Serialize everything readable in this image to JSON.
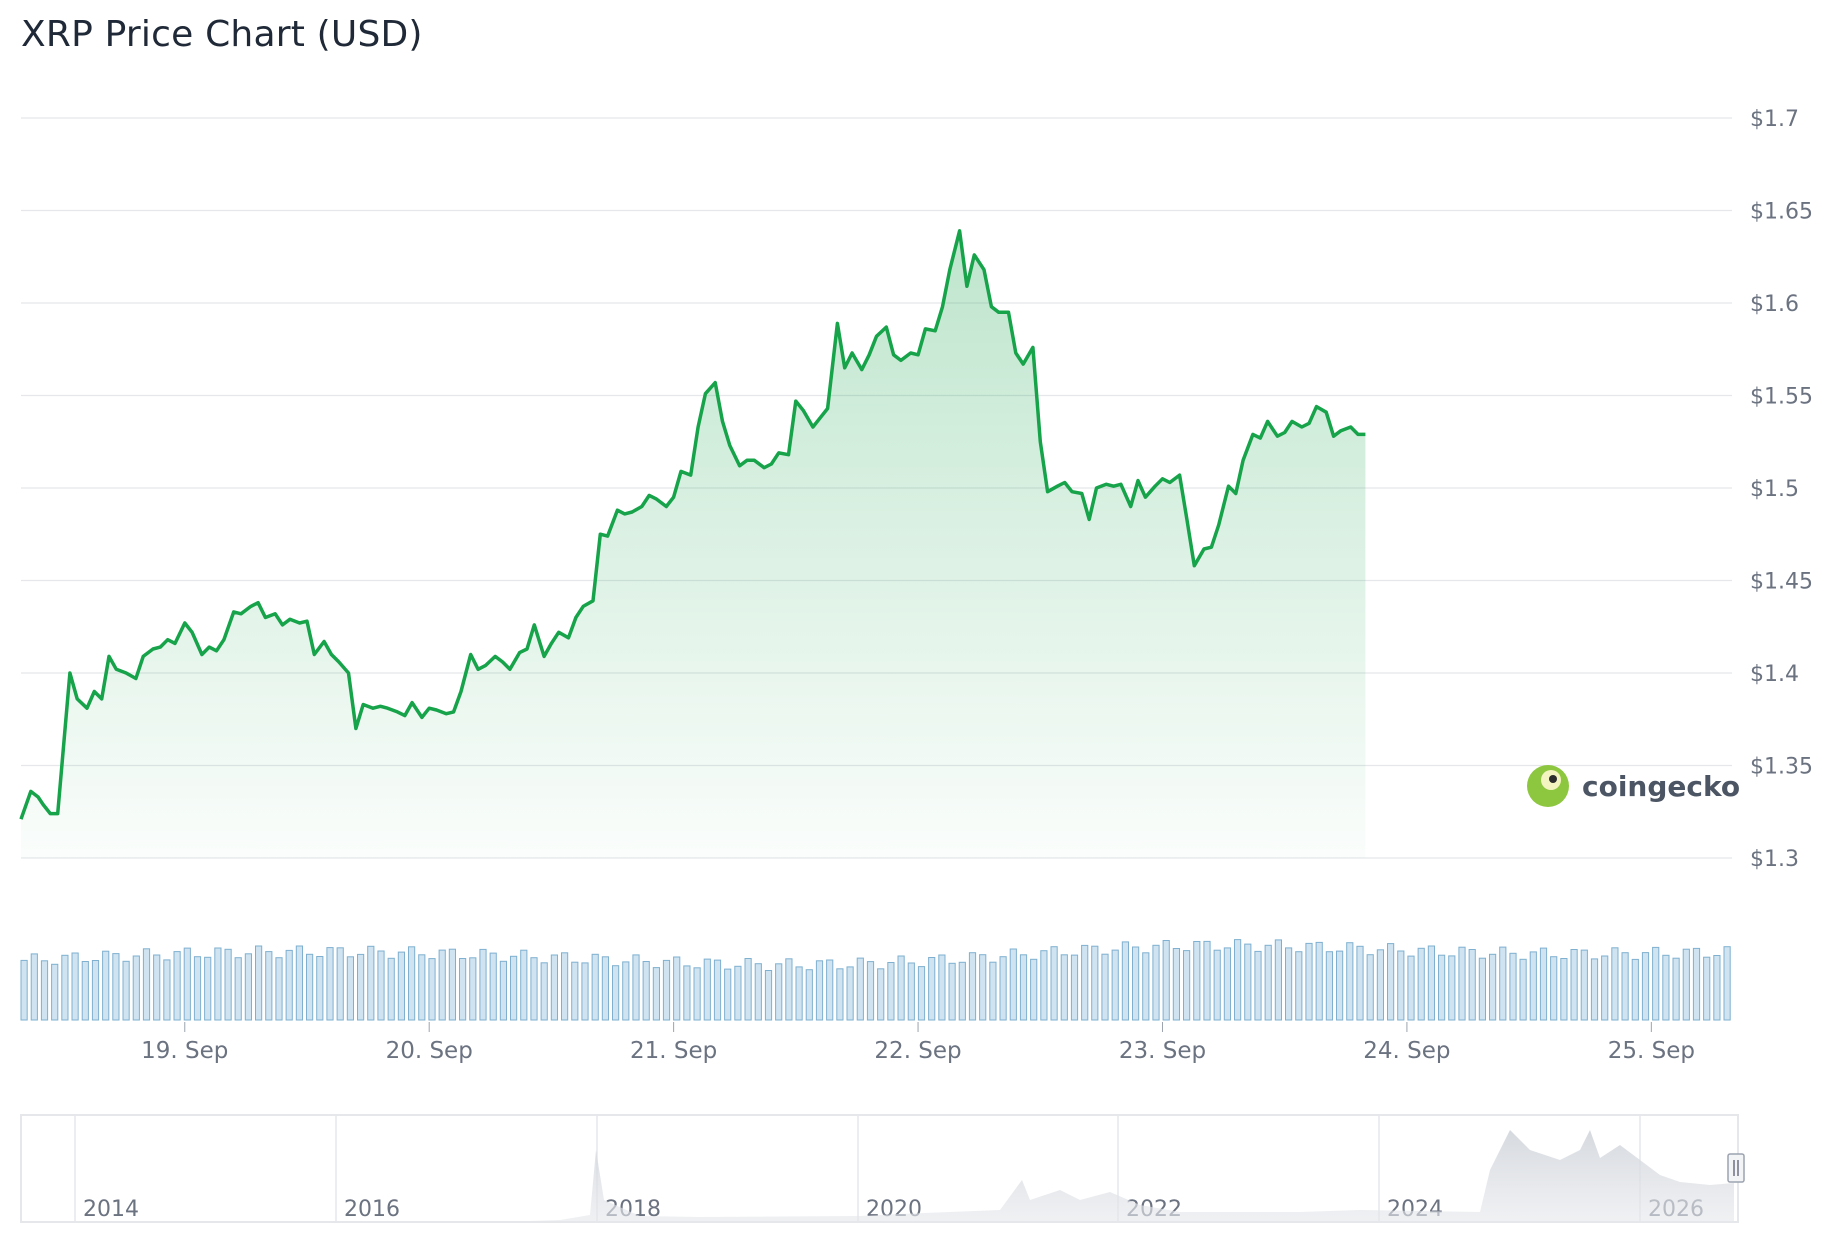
{
  "chart_data": {
    "type": "line",
    "title": "XRP Price Chart (USD)",
    "y_unit": "USD",
    "ylim": [
      1.3,
      1.7
    ],
    "y_ticks": [
      {
        "value": 1.7,
        "label": "$1.7"
      },
      {
        "value": 1.65,
        "label": "$1.65"
      },
      {
        "value": 1.6,
        "label": "$1.6"
      },
      {
        "value": 1.55,
        "label": "$1.55"
      },
      {
        "value": 1.5,
        "label": "$1.5"
      },
      {
        "value": 1.45,
        "label": "$1.45"
      },
      {
        "value": 1.4,
        "label": "$1.4"
      },
      {
        "value": 1.35,
        "label": "$1.35"
      },
      {
        "value": 1.3,
        "label": "$1.3"
      }
    ],
    "x_range_days": [
      18.33,
      25.33
    ],
    "x_ticks": [
      {
        "value": 19,
        "label": "19. Sep"
      },
      {
        "value": 20,
        "label": "20. Sep"
      },
      {
        "value": 21,
        "label": "21. Sep"
      },
      {
        "value": 22,
        "label": "22. Sep"
      },
      {
        "value": 23,
        "label": "23. Sep"
      },
      {
        "value": 24,
        "label": "24. Sep"
      },
      {
        "value": 25,
        "label": "25. Sep"
      }
    ],
    "grid": true,
    "series": [
      {
        "color": "#16a34a",
        "points": [
          [
            18.33,
            1.321
          ],
          [
            18.37,
            1.336
          ],
          [
            18.4,
            1.333
          ],
          [
            18.42,
            1.329
          ],
          [
            18.45,
            1.324
          ],
          [
            18.48,
            1.324
          ],
          [
            18.53,
            1.4
          ],
          [
            18.56,
            1.386
          ],
          [
            18.6,
            1.381
          ],
          [
            18.63,
            1.39
          ],
          [
            18.66,
            1.386
          ],
          [
            18.69,
            1.409
          ],
          [
            18.72,
            1.402
          ],
          [
            18.76,
            1.4
          ],
          [
            18.8,
            1.397
          ],
          [
            18.83,
            1.409
          ],
          [
            18.87,
            1.413
          ],
          [
            18.9,
            1.414
          ],
          [
            18.93,
            1.418
          ],
          [
            18.96,
            1.416
          ],
          [
            19.0,
            1.427
          ],
          [
            19.03,
            1.422
          ],
          [
            19.07,
            1.41
          ],
          [
            19.1,
            1.414
          ],
          [
            19.13,
            1.412
          ],
          [
            19.16,
            1.418
          ],
          [
            19.2,
            1.433
          ],
          [
            19.23,
            1.432
          ],
          [
            19.27,
            1.436
          ],
          [
            19.3,
            1.438
          ],
          [
            19.33,
            1.43
          ],
          [
            19.37,
            1.432
          ],
          [
            19.4,
            1.426
          ],
          [
            19.43,
            1.429
          ],
          [
            19.47,
            1.427
          ],
          [
            19.5,
            1.428
          ],
          [
            19.53,
            1.41
          ],
          [
            19.57,
            1.417
          ],
          [
            19.6,
            1.41
          ],
          [
            19.63,
            1.406
          ],
          [
            19.67,
            1.4
          ],
          [
            19.7,
            1.37
          ],
          [
            19.73,
            1.383
          ],
          [
            19.77,
            1.381
          ],
          [
            19.8,
            1.382
          ],
          [
            19.83,
            1.381
          ],
          [
            19.87,
            1.379
          ],
          [
            19.9,
            1.377
          ],
          [
            19.93,
            1.384
          ],
          [
            19.97,
            1.376
          ],
          [
            20.0,
            1.381
          ],
          [
            20.03,
            1.38
          ],
          [
            20.07,
            1.378
          ],
          [
            20.1,
            1.379
          ],
          [
            20.13,
            1.39
          ],
          [
            20.17,
            1.41
          ],
          [
            20.2,
            1.402
          ],
          [
            20.23,
            1.404
          ],
          [
            20.27,
            1.409
          ],
          [
            20.3,
            1.406
          ],
          [
            20.33,
            1.402
          ],
          [
            20.37,
            1.411
          ],
          [
            20.4,
            1.413
          ],
          [
            20.43,
            1.426
          ],
          [
            20.47,
            1.409
          ],
          [
            20.5,
            1.416
          ],
          [
            20.53,
            1.422
          ],
          [
            20.57,
            1.419
          ],
          [
            20.6,
            1.43
          ],
          [
            20.63,
            1.436
          ],
          [
            20.67,
            1.439
          ],
          [
            20.7,
            1.475
          ],
          [
            20.73,
            1.474
          ],
          [
            20.77,
            1.488
          ],
          [
            20.8,
            1.486
          ],
          [
            20.83,
            1.487
          ],
          [
            20.87,
            1.49
          ],
          [
            20.9,
            1.496
          ],
          [
            20.93,
            1.494
          ],
          [
            20.97,
            1.49
          ],
          [
            21.0,
            1.495
          ],
          [
            21.03,
            1.509
          ],
          [
            21.07,
            1.507
          ],
          [
            21.1,
            1.533
          ],
          [
            21.13,
            1.551
          ],
          [
            21.17,
            1.557
          ],
          [
            21.2,
            1.536
          ],
          [
            21.23,
            1.523
          ],
          [
            21.27,
            1.512
          ],
          [
            21.3,
            1.515
          ],
          [
            21.33,
            1.515
          ],
          [
            21.37,
            1.511
          ],
          [
            21.4,
            1.513
          ],
          [
            21.43,
            1.519
          ],
          [
            21.47,
            1.518
          ],
          [
            21.5,
            1.547
          ],
          [
            21.53,
            1.542
          ],
          [
            21.57,
            1.533
          ],
          [
            21.6,
            1.538
          ],
          [
            21.63,
            1.543
          ],
          [
            21.67,
            1.589
          ],
          [
            21.7,
            1.565
          ],
          [
            21.73,
            1.573
          ],
          [
            21.77,
            1.564
          ],
          [
            21.8,
            1.572
          ],
          [
            21.83,
            1.582
          ],
          [
            21.87,
            1.587
          ],
          [
            21.9,
            1.572
          ],
          [
            21.93,
            1.569
          ],
          [
            21.97,
            1.573
          ],
          [
            22.0,
            1.572
          ],
          [
            22.03,
            1.586
          ],
          [
            22.07,
            1.585
          ],
          [
            22.1,
            1.598
          ],
          [
            22.13,
            1.618
          ],
          [
            22.17,
            1.639
          ],
          [
            22.2,
            1.609
          ],
          [
            22.23,
            1.626
          ],
          [
            22.27,
            1.618
          ],
          [
            22.3,
            1.598
          ],
          [
            22.33,
            1.595
          ],
          [
            22.37,
            1.595
          ],
          [
            22.4,
            1.573
          ],
          [
            22.43,
            1.567
          ],
          [
            22.47,
            1.576
          ],
          [
            22.5,
            1.525
          ],
          [
            22.53,
            1.498
          ],
          [
            22.57,
            1.501
          ],
          [
            22.6,
            1.503
          ],
          [
            22.63,
            1.498
          ],
          [
            22.67,
            1.497
          ],
          [
            22.7,
            1.483
          ],
          [
            22.73,
            1.5
          ],
          [
            22.77,
            1.502
          ],
          [
            22.8,
            1.501
          ],
          [
            22.83,
            1.502
          ],
          [
            22.87,
            1.49
          ],
          [
            22.9,
            1.504
          ],
          [
            22.93,
            1.495
          ],
          [
            22.97,
            1.501
          ],
          [
            23.0,
            1.505
          ],
          [
            23.03,
            1.503
          ],
          [
            23.07,
            1.507
          ],
          [
            23.1,
            1.483
          ],
          [
            23.13,
            1.458
          ],
          [
            23.17,
            1.467
          ],
          [
            23.2,
            1.468
          ],
          [
            23.23,
            1.48
          ],
          [
            23.27,
            1.501
          ],
          [
            23.3,
            1.497
          ],
          [
            23.33,
            1.515
          ],
          [
            23.37,
            1.529
          ],
          [
            23.4,
            1.527
          ],
          [
            23.43,
            1.536
          ],
          [
            23.47,
            1.528
          ],
          [
            23.5,
            1.53
          ],
          [
            23.53,
            1.536
          ],
          [
            23.57,
            1.533
          ],
          [
            23.6,
            1.535
          ],
          [
            23.63,
            1.544
          ],
          [
            23.67,
            1.541
          ],
          [
            23.7,
            1.528
          ],
          [
            23.73,
            1.531
          ],
          [
            23.77,
            1.533
          ],
          [
            23.8,
            1.529
          ],
          [
            23.83,
            1.529
          ]
        ]
      }
    ],
    "volume_note": "relative bar heights",
    "navigator": {
      "ticks": [
        "2014",
        "2016",
        "2018",
        "2020",
        "2022",
        "2024",
        "2026"
      ]
    }
  },
  "watermark": {
    "text": "coingecko"
  }
}
